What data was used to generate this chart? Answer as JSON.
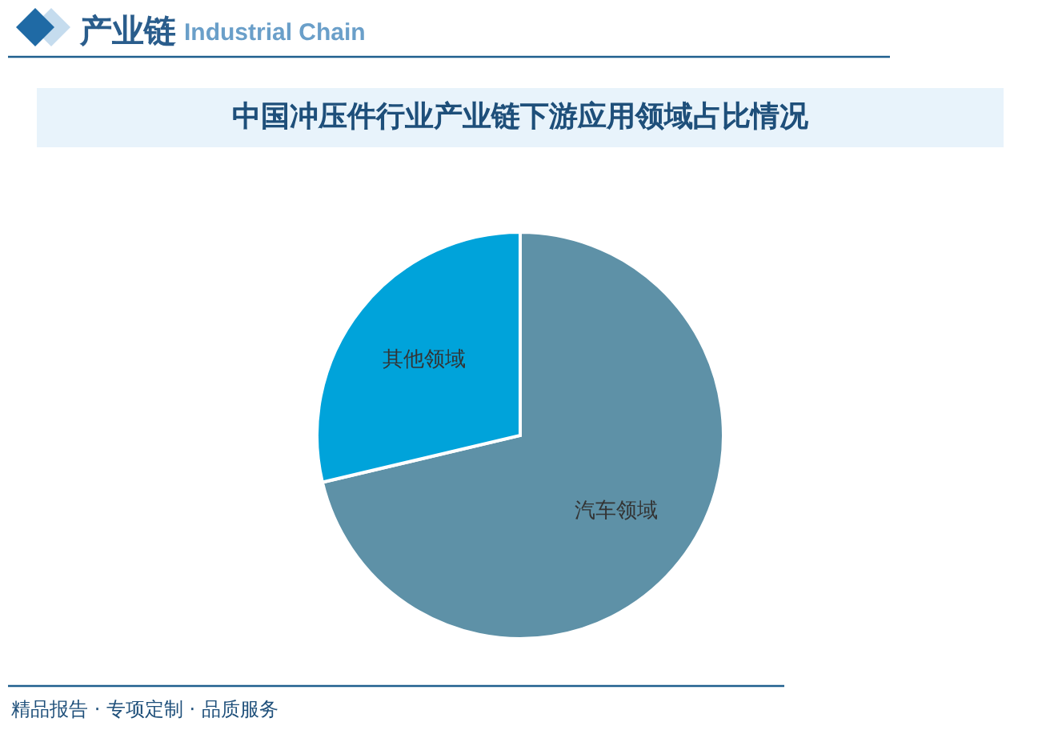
{
  "chart_data": {
    "type": "pie",
    "title": "中国冲压件行业产业链下游应用领域占比情况",
    "categories": [
      "汽车领域",
      "其他领域"
    ],
    "values": [
      71.3,
      28.7
    ],
    "colors": [
      "#5e91a7",
      "#00a3da"
    ],
    "legend": false,
    "annotations": [
      "产业链",
      "Industrial Chain",
      "精品报告 · 专项定制 · 品质服务"
    ]
  }
}
